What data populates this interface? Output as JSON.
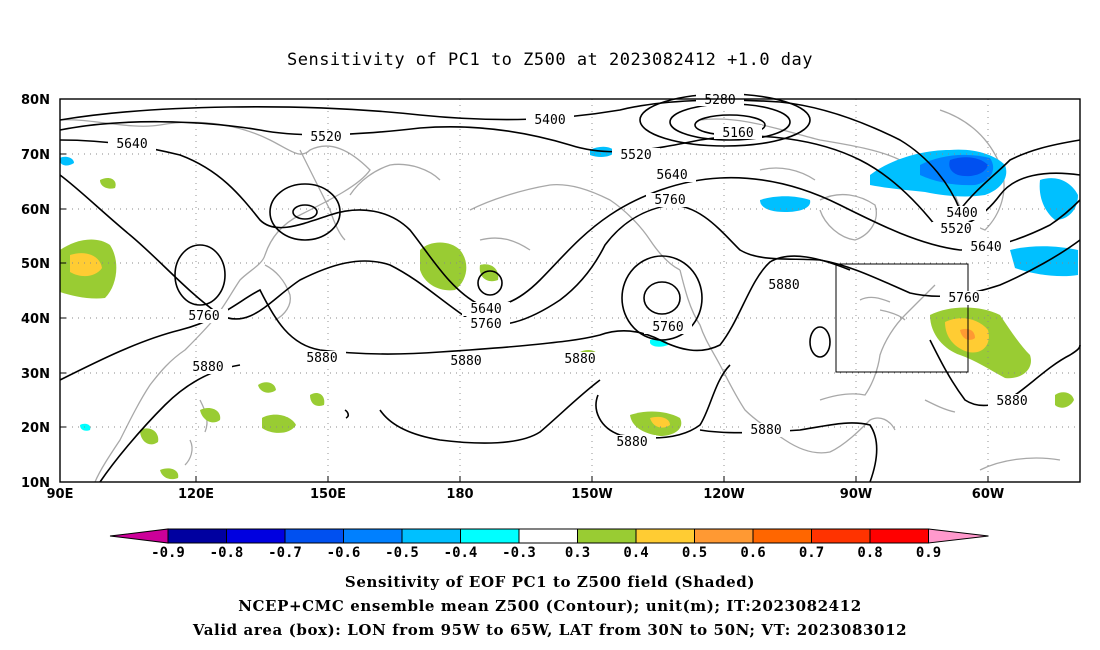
{
  "title": "Sensitivity of PC1 to Z500 at 2023082412 +1.0 day",
  "lat_labels": [
    "80N",
    "70N",
    "60N",
    "50N",
    "40N",
    "30N",
    "20N",
    "10N"
  ],
  "lon_labels": [
    "90E",
    "120E",
    "150E",
    "180",
    "150W",
    "120W",
    "90W",
    "60W"
  ],
  "contour_labels": [
    "5160",
    "5280",
    "5400",
    "5520",
    "5640",
    "5760",
    "5880"
  ],
  "colorbar": {
    "labels": [
      "-0.9",
      "-0.8",
      "-0.7",
      "-0.6",
      "-0.5",
      "-0.4",
      "-0.3",
      "0.3",
      "0.4",
      "0.5",
      "0.6",
      "0.7",
      "0.8",
      "0.9"
    ],
    "colors": [
      "#cc0099",
      "#0000a0",
      "#0000e0",
      "#0050f0",
      "#0080ff",
      "#00c0ff",
      "#00ffff",
      "#ffffff",
      "#99cc33",
      "#ffcc33",
      "#ff9933",
      "#ff6600",
      "#ff3300",
      "#ff0000",
      "#ff99cc"
    ]
  },
  "captions": [
    "Sensitivity of EOF PC1 to Z500 field (Shaded)",
    "NCEP+CMC ensemble mean Z500 (Contour); unit(m); IT:2023082412",
    "Valid area (box): LON from 95W to 65W, LAT from 30N to 50N; VT: 2023083012"
  ]
}
